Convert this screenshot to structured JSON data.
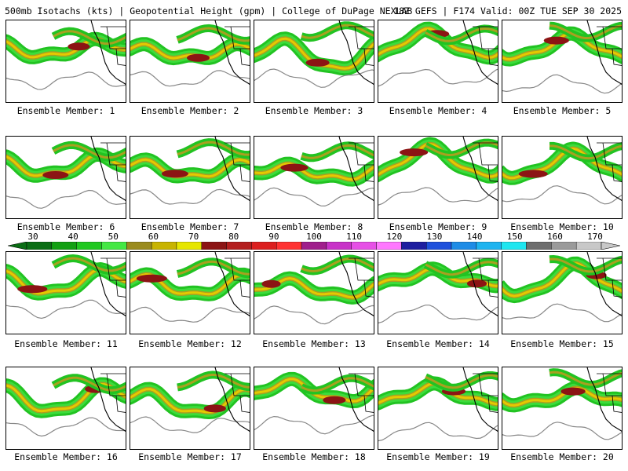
{
  "header": {
    "title_left": "500mb Isotachs (kts) | Geopotential Height (gpm) | College of DuPage NEXLAB",
    "title_right": "18Z GEFS | F174 Valid: 00Z TUE SEP 30 2025"
  },
  "panels": [
    {
      "label": "Ensemble Member: 1"
    },
    {
      "label": "Ensemble Member: 2"
    },
    {
      "label": "Ensemble Member: 3"
    },
    {
      "label": "Ensemble Member: 4"
    },
    {
      "label": "Ensemble Member: 5"
    },
    {
      "label": "Ensemble Member: 6"
    },
    {
      "label": "Ensemble Member: 7"
    },
    {
      "label": "Ensemble Member: 8"
    },
    {
      "label": "Ensemble Member: 9"
    },
    {
      "label": "Ensemble Member: 10"
    },
    {
      "label": "Ensemble Member: 11"
    },
    {
      "label": "Ensemble Member: 12"
    },
    {
      "label": "Ensemble Member: 13"
    },
    {
      "label": "Ensemble Member: 14"
    },
    {
      "label": "Ensemble Member: 15"
    },
    {
      "label": "Ensemble Member: 16"
    },
    {
      "label": "Ensemble Member: 17"
    },
    {
      "label": "Ensemble Member: 18"
    },
    {
      "label": "Ensemble Member: 19"
    },
    {
      "label": "Ensemble Member: 20"
    }
  ],
  "colorbar": {
    "labels": [
      "30",
      "40",
      "50",
      "60",
      "70",
      "80",
      "90",
      "100",
      "110",
      "120",
      "130",
      "140",
      "150",
      "160",
      "170"
    ],
    "colors": [
      "#0a6e14",
      "#12a012",
      "#20c820",
      "#44e844",
      "#9a8b1e",
      "#c8b400",
      "#e6e600",
      "#8c1414",
      "#b41e1e",
      "#dc1e1e",
      "#ff3232",
      "#a01e8c",
      "#c832c8",
      "#e650e6",
      "#ff78ff",
      "#1e1ea0",
      "#1e50dc",
      "#1e8ce6",
      "#1eb4f0",
      "#1ee6f0",
      "#6e6e6e",
      "#9a9a9a",
      "#c8c8c8"
    ]
  }
}
